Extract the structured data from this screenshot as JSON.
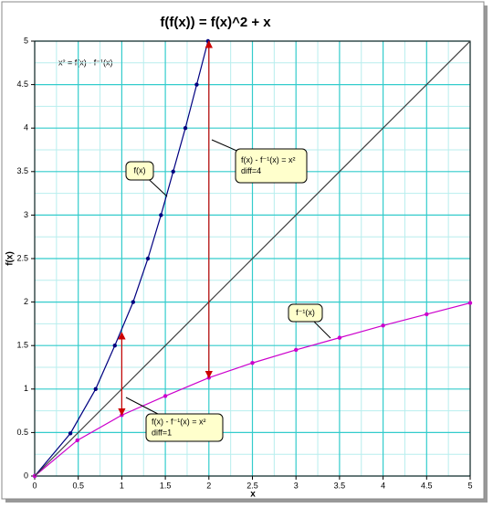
{
  "chart_data": {
    "type": "line",
    "title": "f(f(x)) = f(x)^2 + x",
    "x_label": "x",
    "y_label": "f(x)",
    "xlim": [
      0,
      5
    ],
    "ylim": [
      0,
      5
    ],
    "xticks": [
      0,
      0.5,
      1,
      1.5,
      2,
      2.5,
      3,
      3.5,
      4,
      4.5,
      5
    ],
    "yticks": [
      0,
      0.5,
      1,
      1.5,
      2,
      2.5,
      3,
      3.5,
      4,
      4.5,
      5
    ],
    "grid": true,
    "grid_color": "#33cccc",
    "series": [
      {
        "color": "#000080",
        "markers": true,
        "x": [
          0,
          0.41,
          0.7,
          0.92,
          1.13,
          1.3,
          1.45,
          1.59,
          1.73,
          1.86,
          1.99
        ],
        "values": [
          0,
          0.49,
          1.0,
          1.5,
          2.0,
          2.5,
          3.0,
          3.5,
          4.0,
          4.5,
          5.0
        ]
      },
      {
        "color": "#cc00cc",
        "markers": true,
        "x": [
          0,
          0.49,
          1.0,
          1.5,
          2.0,
          2.5,
          3.0,
          3.5,
          4.0,
          4.5,
          5.0
        ],
        "values": [
          0,
          0.41,
          0.7,
          0.92,
          1.13,
          1.3,
          1.45,
          1.59,
          1.73,
          1.86,
          1.99
        ]
      },
      {
        "color": "#404040",
        "markers": false,
        "x": [
          0,
          5
        ],
        "values": [
          0,
          5
        ]
      }
    ],
    "arrows": [
      {
        "color": "#cc0000",
        "x": 1,
        "values": [
          0.7,
          1.65
        ]
      },
      {
        "color": "#cc0000",
        "x": 2,
        "values": [
          1.13,
          5.0
        ]
      }
    ],
    "formula": "x² = f(x) - f⁻¹(x)",
    "callouts": [
      {
        "lines": [
          "f(x)"
        ]
      },
      {
        "lines": [
          "f⁻¹(x)"
        ]
      },
      {
        "lines": [
          "f(x) - f⁻¹(x) = x²",
          "diff=4"
        ]
      },
      {
        "lines": [
          "f(x) - f⁻¹(x) = x²",
          "diff=1"
        ]
      }
    ]
  }
}
